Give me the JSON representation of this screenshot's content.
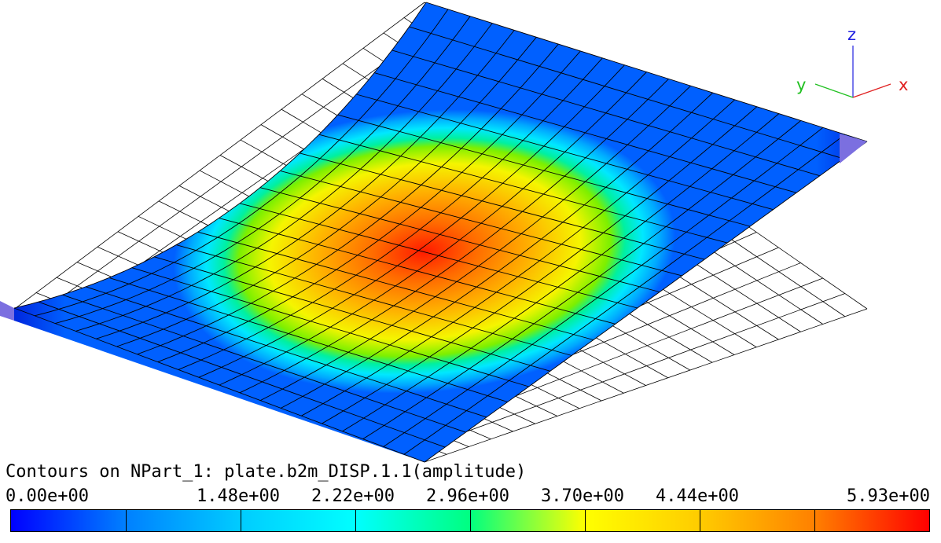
{
  "axes": {
    "x_label": "x",
    "y_label": "y",
    "z_label": "z",
    "x_color": "#e02020",
    "y_color": "#20c020",
    "z_color": "#2020e0"
  },
  "contour": {
    "title": "Contours on NPart_1: plate.b2m_DISP.1.1(amplitude)",
    "tick_labels": [
      "0.00e+00",
      "1.48e+00",
      "2.22e+00",
      "2.96e+00",
      "3.70e+00",
      "4.44e+00",
      "5.93e+00"
    ],
    "colormap": [
      "#0000ff",
      "#0080ff",
      "#00ccff",
      "#00ffff",
      "#00ff80",
      "#ffff00",
      "#ffcc00",
      "#ff8000",
      "#ff0000"
    ]
  },
  "mesh": {
    "deformed_edge_color": "#000000",
    "undeformed_edge_color": "#000000",
    "support_color": "#7b6fe0"
  }
}
